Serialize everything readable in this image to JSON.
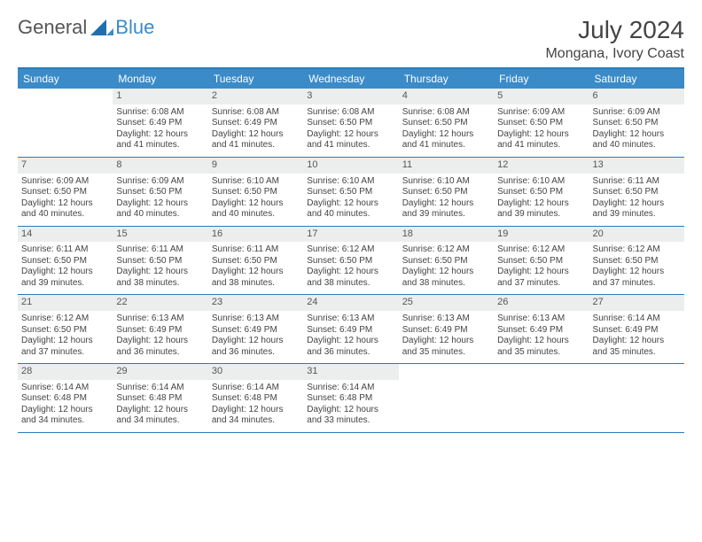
{
  "brand": {
    "general": "General",
    "blue": "Blue"
  },
  "title": "July 2024",
  "location": "Mongana, Ivory Coast",
  "colors": {
    "header_bg": "#3a8bc8",
    "border": "#2a7ab9",
    "daynum_bg": "#eceeee",
    "text": "#444444",
    "page_bg": "#ffffff"
  },
  "typography": {
    "title_fontsize": 28,
    "location_fontsize": 16,
    "weekday_fontsize": 12,
    "body_fontsize": 10
  },
  "weekdays": [
    "Sunday",
    "Monday",
    "Tuesday",
    "Wednesday",
    "Thursday",
    "Friday",
    "Saturday"
  ],
  "weeks": [
    [
      {
        "n": "",
        "sunrise": "",
        "sunset": "",
        "daylight": ""
      },
      {
        "n": "1",
        "sunrise": "Sunrise: 6:08 AM",
        "sunset": "Sunset: 6:49 PM",
        "daylight": "Daylight: 12 hours and 41 minutes."
      },
      {
        "n": "2",
        "sunrise": "Sunrise: 6:08 AM",
        "sunset": "Sunset: 6:49 PM",
        "daylight": "Daylight: 12 hours and 41 minutes."
      },
      {
        "n": "3",
        "sunrise": "Sunrise: 6:08 AM",
        "sunset": "Sunset: 6:50 PM",
        "daylight": "Daylight: 12 hours and 41 minutes."
      },
      {
        "n": "4",
        "sunrise": "Sunrise: 6:08 AM",
        "sunset": "Sunset: 6:50 PM",
        "daylight": "Daylight: 12 hours and 41 minutes."
      },
      {
        "n": "5",
        "sunrise": "Sunrise: 6:09 AM",
        "sunset": "Sunset: 6:50 PM",
        "daylight": "Daylight: 12 hours and 41 minutes."
      },
      {
        "n": "6",
        "sunrise": "Sunrise: 6:09 AM",
        "sunset": "Sunset: 6:50 PM",
        "daylight": "Daylight: 12 hours and 40 minutes."
      }
    ],
    [
      {
        "n": "7",
        "sunrise": "Sunrise: 6:09 AM",
        "sunset": "Sunset: 6:50 PM",
        "daylight": "Daylight: 12 hours and 40 minutes."
      },
      {
        "n": "8",
        "sunrise": "Sunrise: 6:09 AM",
        "sunset": "Sunset: 6:50 PM",
        "daylight": "Daylight: 12 hours and 40 minutes."
      },
      {
        "n": "9",
        "sunrise": "Sunrise: 6:10 AM",
        "sunset": "Sunset: 6:50 PM",
        "daylight": "Daylight: 12 hours and 40 minutes."
      },
      {
        "n": "10",
        "sunrise": "Sunrise: 6:10 AM",
        "sunset": "Sunset: 6:50 PM",
        "daylight": "Daylight: 12 hours and 40 minutes."
      },
      {
        "n": "11",
        "sunrise": "Sunrise: 6:10 AM",
        "sunset": "Sunset: 6:50 PM",
        "daylight": "Daylight: 12 hours and 39 minutes."
      },
      {
        "n": "12",
        "sunrise": "Sunrise: 6:10 AM",
        "sunset": "Sunset: 6:50 PM",
        "daylight": "Daylight: 12 hours and 39 minutes."
      },
      {
        "n": "13",
        "sunrise": "Sunrise: 6:11 AM",
        "sunset": "Sunset: 6:50 PM",
        "daylight": "Daylight: 12 hours and 39 minutes."
      }
    ],
    [
      {
        "n": "14",
        "sunrise": "Sunrise: 6:11 AM",
        "sunset": "Sunset: 6:50 PM",
        "daylight": "Daylight: 12 hours and 39 minutes."
      },
      {
        "n": "15",
        "sunrise": "Sunrise: 6:11 AM",
        "sunset": "Sunset: 6:50 PM",
        "daylight": "Daylight: 12 hours and 38 minutes."
      },
      {
        "n": "16",
        "sunrise": "Sunrise: 6:11 AM",
        "sunset": "Sunset: 6:50 PM",
        "daylight": "Daylight: 12 hours and 38 minutes."
      },
      {
        "n": "17",
        "sunrise": "Sunrise: 6:12 AM",
        "sunset": "Sunset: 6:50 PM",
        "daylight": "Daylight: 12 hours and 38 minutes."
      },
      {
        "n": "18",
        "sunrise": "Sunrise: 6:12 AM",
        "sunset": "Sunset: 6:50 PM",
        "daylight": "Daylight: 12 hours and 38 minutes."
      },
      {
        "n": "19",
        "sunrise": "Sunrise: 6:12 AM",
        "sunset": "Sunset: 6:50 PM",
        "daylight": "Daylight: 12 hours and 37 minutes."
      },
      {
        "n": "20",
        "sunrise": "Sunrise: 6:12 AM",
        "sunset": "Sunset: 6:50 PM",
        "daylight": "Daylight: 12 hours and 37 minutes."
      }
    ],
    [
      {
        "n": "21",
        "sunrise": "Sunrise: 6:12 AM",
        "sunset": "Sunset: 6:50 PM",
        "daylight": "Daylight: 12 hours and 37 minutes."
      },
      {
        "n": "22",
        "sunrise": "Sunrise: 6:13 AM",
        "sunset": "Sunset: 6:49 PM",
        "daylight": "Daylight: 12 hours and 36 minutes."
      },
      {
        "n": "23",
        "sunrise": "Sunrise: 6:13 AM",
        "sunset": "Sunset: 6:49 PM",
        "daylight": "Daylight: 12 hours and 36 minutes."
      },
      {
        "n": "24",
        "sunrise": "Sunrise: 6:13 AM",
        "sunset": "Sunset: 6:49 PM",
        "daylight": "Daylight: 12 hours and 36 minutes."
      },
      {
        "n": "25",
        "sunrise": "Sunrise: 6:13 AM",
        "sunset": "Sunset: 6:49 PM",
        "daylight": "Daylight: 12 hours and 35 minutes."
      },
      {
        "n": "26",
        "sunrise": "Sunrise: 6:13 AM",
        "sunset": "Sunset: 6:49 PM",
        "daylight": "Daylight: 12 hours and 35 minutes."
      },
      {
        "n": "27",
        "sunrise": "Sunrise: 6:14 AM",
        "sunset": "Sunset: 6:49 PM",
        "daylight": "Daylight: 12 hours and 35 minutes."
      }
    ],
    [
      {
        "n": "28",
        "sunrise": "Sunrise: 6:14 AM",
        "sunset": "Sunset: 6:48 PM",
        "daylight": "Daylight: 12 hours and 34 minutes."
      },
      {
        "n": "29",
        "sunrise": "Sunrise: 6:14 AM",
        "sunset": "Sunset: 6:48 PM",
        "daylight": "Daylight: 12 hours and 34 minutes."
      },
      {
        "n": "30",
        "sunrise": "Sunrise: 6:14 AM",
        "sunset": "Sunset: 6:48 PM",
        "daylight": "Daylight: 12 hours and 34 minutes."
      },
      {
        "n": "31",
        "sunrise": "Sunrise: 6:14 AM",
        "sunset": "Sunset: 6:48 PM",
        "daylight": "Daylight: 12 hours and 33 minutes."
      },
      {
        "n": "",
        "sunrise": "",
        "sunset": "",
        "daylight": ""
      },
      {
        "n": "",
        "sunrise": "",
        "sunset": "",
        "daylight": ""
      },
      {
        "n": "",
        "sunrise": "",
        "sunset": "",
        "daylight": ""
      }
    ]
  ]
}
